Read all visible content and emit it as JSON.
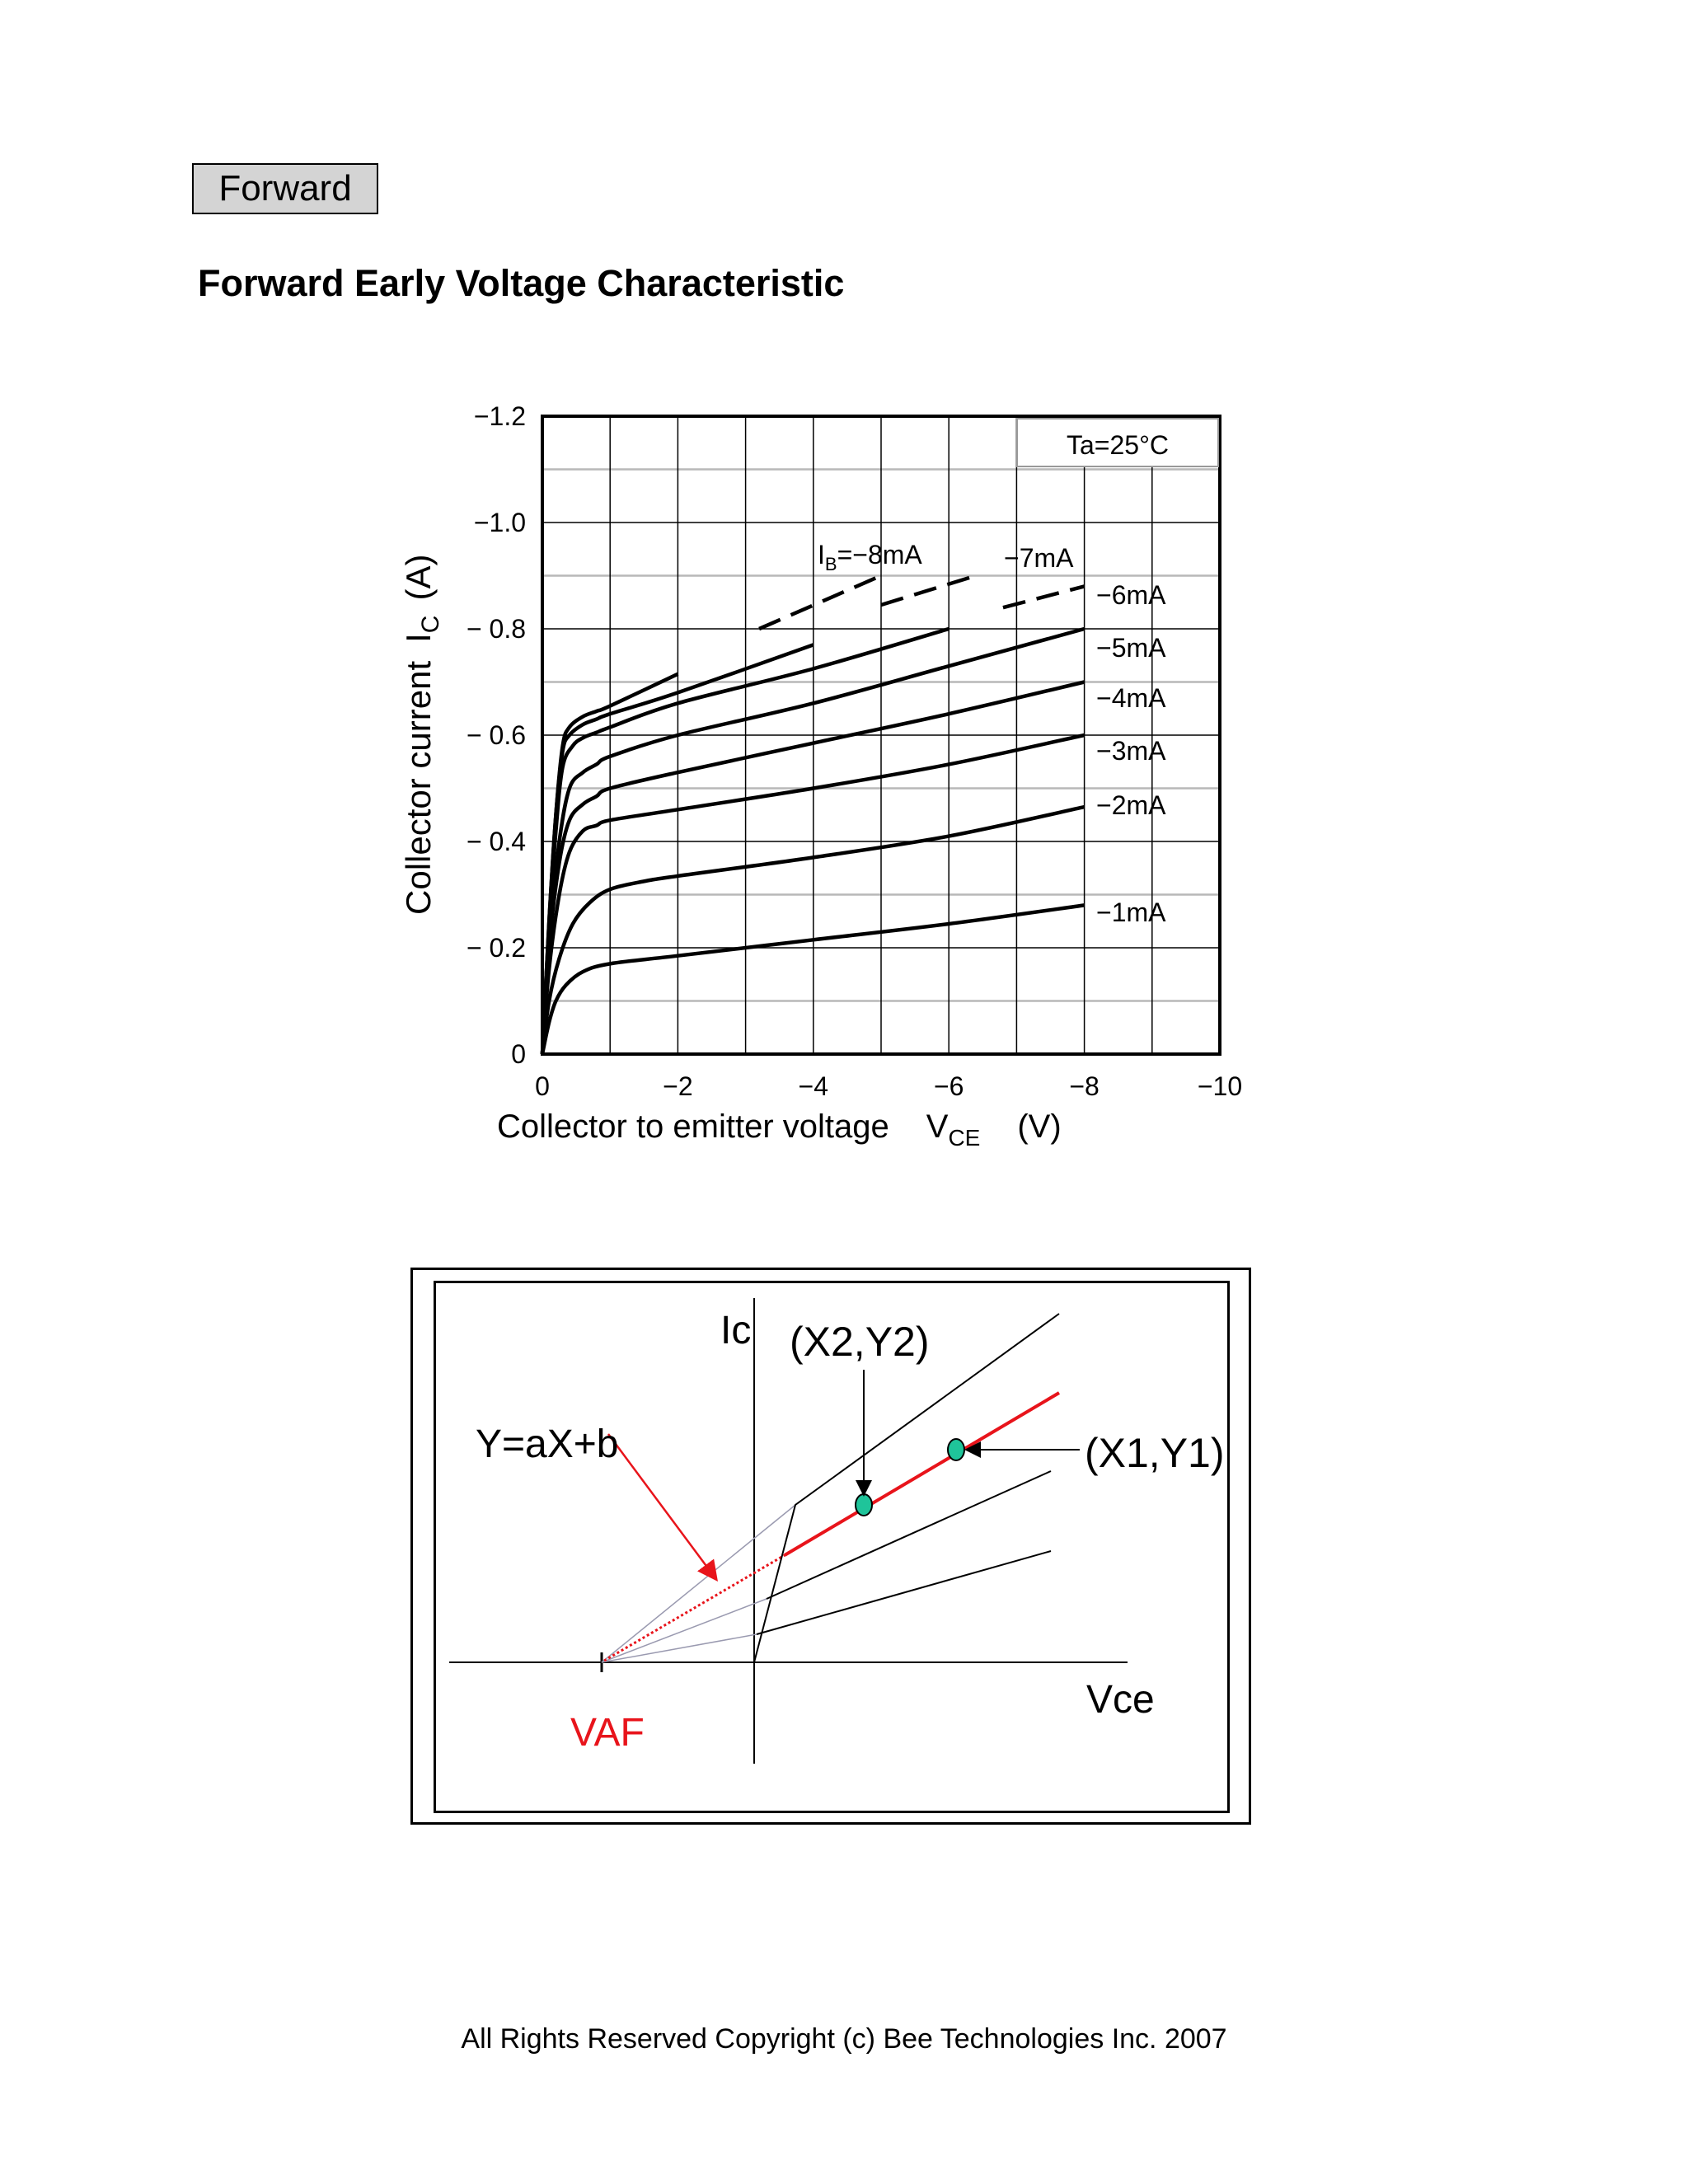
{
  "section_tag": "Forward",
  "doc_title": "Forward Early Voltage Characteristic",
  "chart_data": {
    "type": "line",
    "xlabel": "Collector to emitter voltage",
    "xlabel_symbol": "V",
    "xlabel_sub": "CE",
    "xlabel_unit": "(V)",
    "ylabel": "Collector current",
    "ylabel_symbol": "I",
    "ylabel_sub": "C",
    "ylabel_unit": "(A)",
    "xlim": [
      0,
      -10
    ],
    "ylim": [
      0,
      -1.2
    ],
    "x_ticks": [
      "0",
      "−2",
      "−4",
      "−6",
      "−8",
      "−10"
    ],
    "y_ticks": [
      "0",
      "− 0.2",
      "− 0.4",
      "− 0.6",
      "− 0.8",
      "−1.0",
      "−1.2"
    ],
    "annotation": "Ta=25°C",
    "legend_prefix": "I",
    "legend_prefix_sub": "B",
    "series": [
      {
        "name": "−1mA",
        "label": "−1mA",
        "x": [
          0,
          -0.1,
          -0.2,
          -0.35,
          -0.6,
          -1.0,
          -2,
          -4,
          -6,
          -8
        ],
        "y": [
          0,
          -0.06,
          -0.1,
          -0.13,
          -0.155,
          -0.17,
          -0.185,
          -0.215,
          -0.245,
          -0.28
        ]
      },
      {
        "name": "−2mA",
        "label": "−2mA",
        "x": [
          0,
          -0.1,
          -0.25,
          -0.45,
          -0.7,
          -1.0,
          -1.5,
          -2,
          -4,
          -6,
          -8
        ],
        "y": [
          0,
          -0.1,
          -0.18,
          -0.245,
          -0.285,
          -0.31,
          -0.325,
          -0.335,
          -0.37,
          -0.41,
          -0.465
        ]
      },
      {
        "name": "−3mA",
        "label": "−3mA",
        "x": [
          0,
          -0.1,
          -0.25,
          -0.4,
          -0.6,
          -0.8,
          -1.0,
          -2,
          -4,
          -6,
          -8
        ],
        "y": [
          0,
          -0.16,
          -0.3,
          -0.38,
          -0.42,
          -0.43,
          -0.44,
          -0.46,
          -0.5,
          -0.545,
          -0.6
        ]
      },
      {
        "name": "−4mA",
        "label": "−4mA",
        "x": [
          0,
          -0.1,
          -0.25,
          -0.4,
          -0.6,
          -0.8,
          -1.0,
          -2,
          -4,
          -6,
          -8
        ],
        "y": [
          0,
          -0.2,
          -0.36,
          -0.44,
          -0.47,
          -0.485,
          -0.5,
          -0.53,
          -0.585,
          -0.64,
          -0.7
        ]
      },
      {
        "name": "−5mA",
        "label": "−5mA",
        "x": [
          0,
          -0.1,
          -0.25,
          -0.4,
          -0.6,
          -0.8,
          -1.0,
          -2,
          -4,
          -6,
          -8
        ],
        "y": [
          0,
          -0.22,
          -0.4,
          -0.5,
          -0.53,
          -0.545,
          -0.56,
          -0.6,
          -0.66,
          -0.73,
          -0.8
        ]
      },
      {
        "name": "−6mA",
        "label": "−6mA",
        "x": [
          0,
          -0.1,
          -0.2,
          -0.3,
          -0.45,
          -0.6,
          -0.8,
          -1.0,
          -2,
          -4,
          -6,
          -8
        ],
        "y": [
          0,
          -0.24,
          -0.42,
          -0.54,
          -0.58,
          -0.595,
          -0.605,
          -0.615,
          -0.66,
          -0.725,
          -0.8,
          -0.88
        ]
      },
      {
        "name": "−7mA",
        "label": "−7mA",
        "x": [
          0,
          -0.1,
          -0.2,
          -0.3,
          -0.4,
          -0.6,
          -0.8,
          -1.0,
          -2,
          -4,
          -6.4
        ],
        "y": [
          0,
          -0.25,
          -0.45,
          -0.57,
          -0.6,
          -0.62,
          -0.63,
          -0.64,
          -0.68,
          -0.77,
          -0.9
        ]
      },
      {
        "name": "−8mA",
        "label": "−8mA",
        "x": [
          0,
          -0.1,
          -0.2,
          -0.3,
          -0.4,
          -0.6,
          -0.8,
          -1.0,
          -2,
          -4,
          -5
        ],
        "y": [
          0,
          -0.25,
          -0.45,
          -0.58,
          -0.615,
          -0.635,
          -0.645,
          -0.655,
          -0.715,
          -0.84,
          -0.9
        ]
      }
    ],
    "dashed_extensions": [
      {
        "name": "−8mA",
        "x": [
          -3.2,
          -5
        ],
        "y": [
          -0.8,
          -0.9
        ]
      },
      {
        "name": "−7mA",
        "x": [
          -5.0,
          -6.4
        ],
        "y": [
          -0.845,
          -0.9
        ]
      },
      {
        "name": "−6mA",
        "x": [
          -6.8,
          -8
        ],
        "y": [
          -0.84,
          -0.88
        ]
      }
    ]
  },
  "diagram": {
    "y_axis_label": "Ic",
    "x_axis_label": "Vce",
    "point2_label": "(X2,Y2)",
    "point1_label": "(X1,Y1)",
    "equation_label": "Y=aX+b",
    "intercept_label": "VAF",
    "accent_color": "#e8141b",
    "marker_color": "#1fc49a"
  },
  "footer": "All Rights Reserved Copyright (c) Bee Technologies Inc. 2007"
}
